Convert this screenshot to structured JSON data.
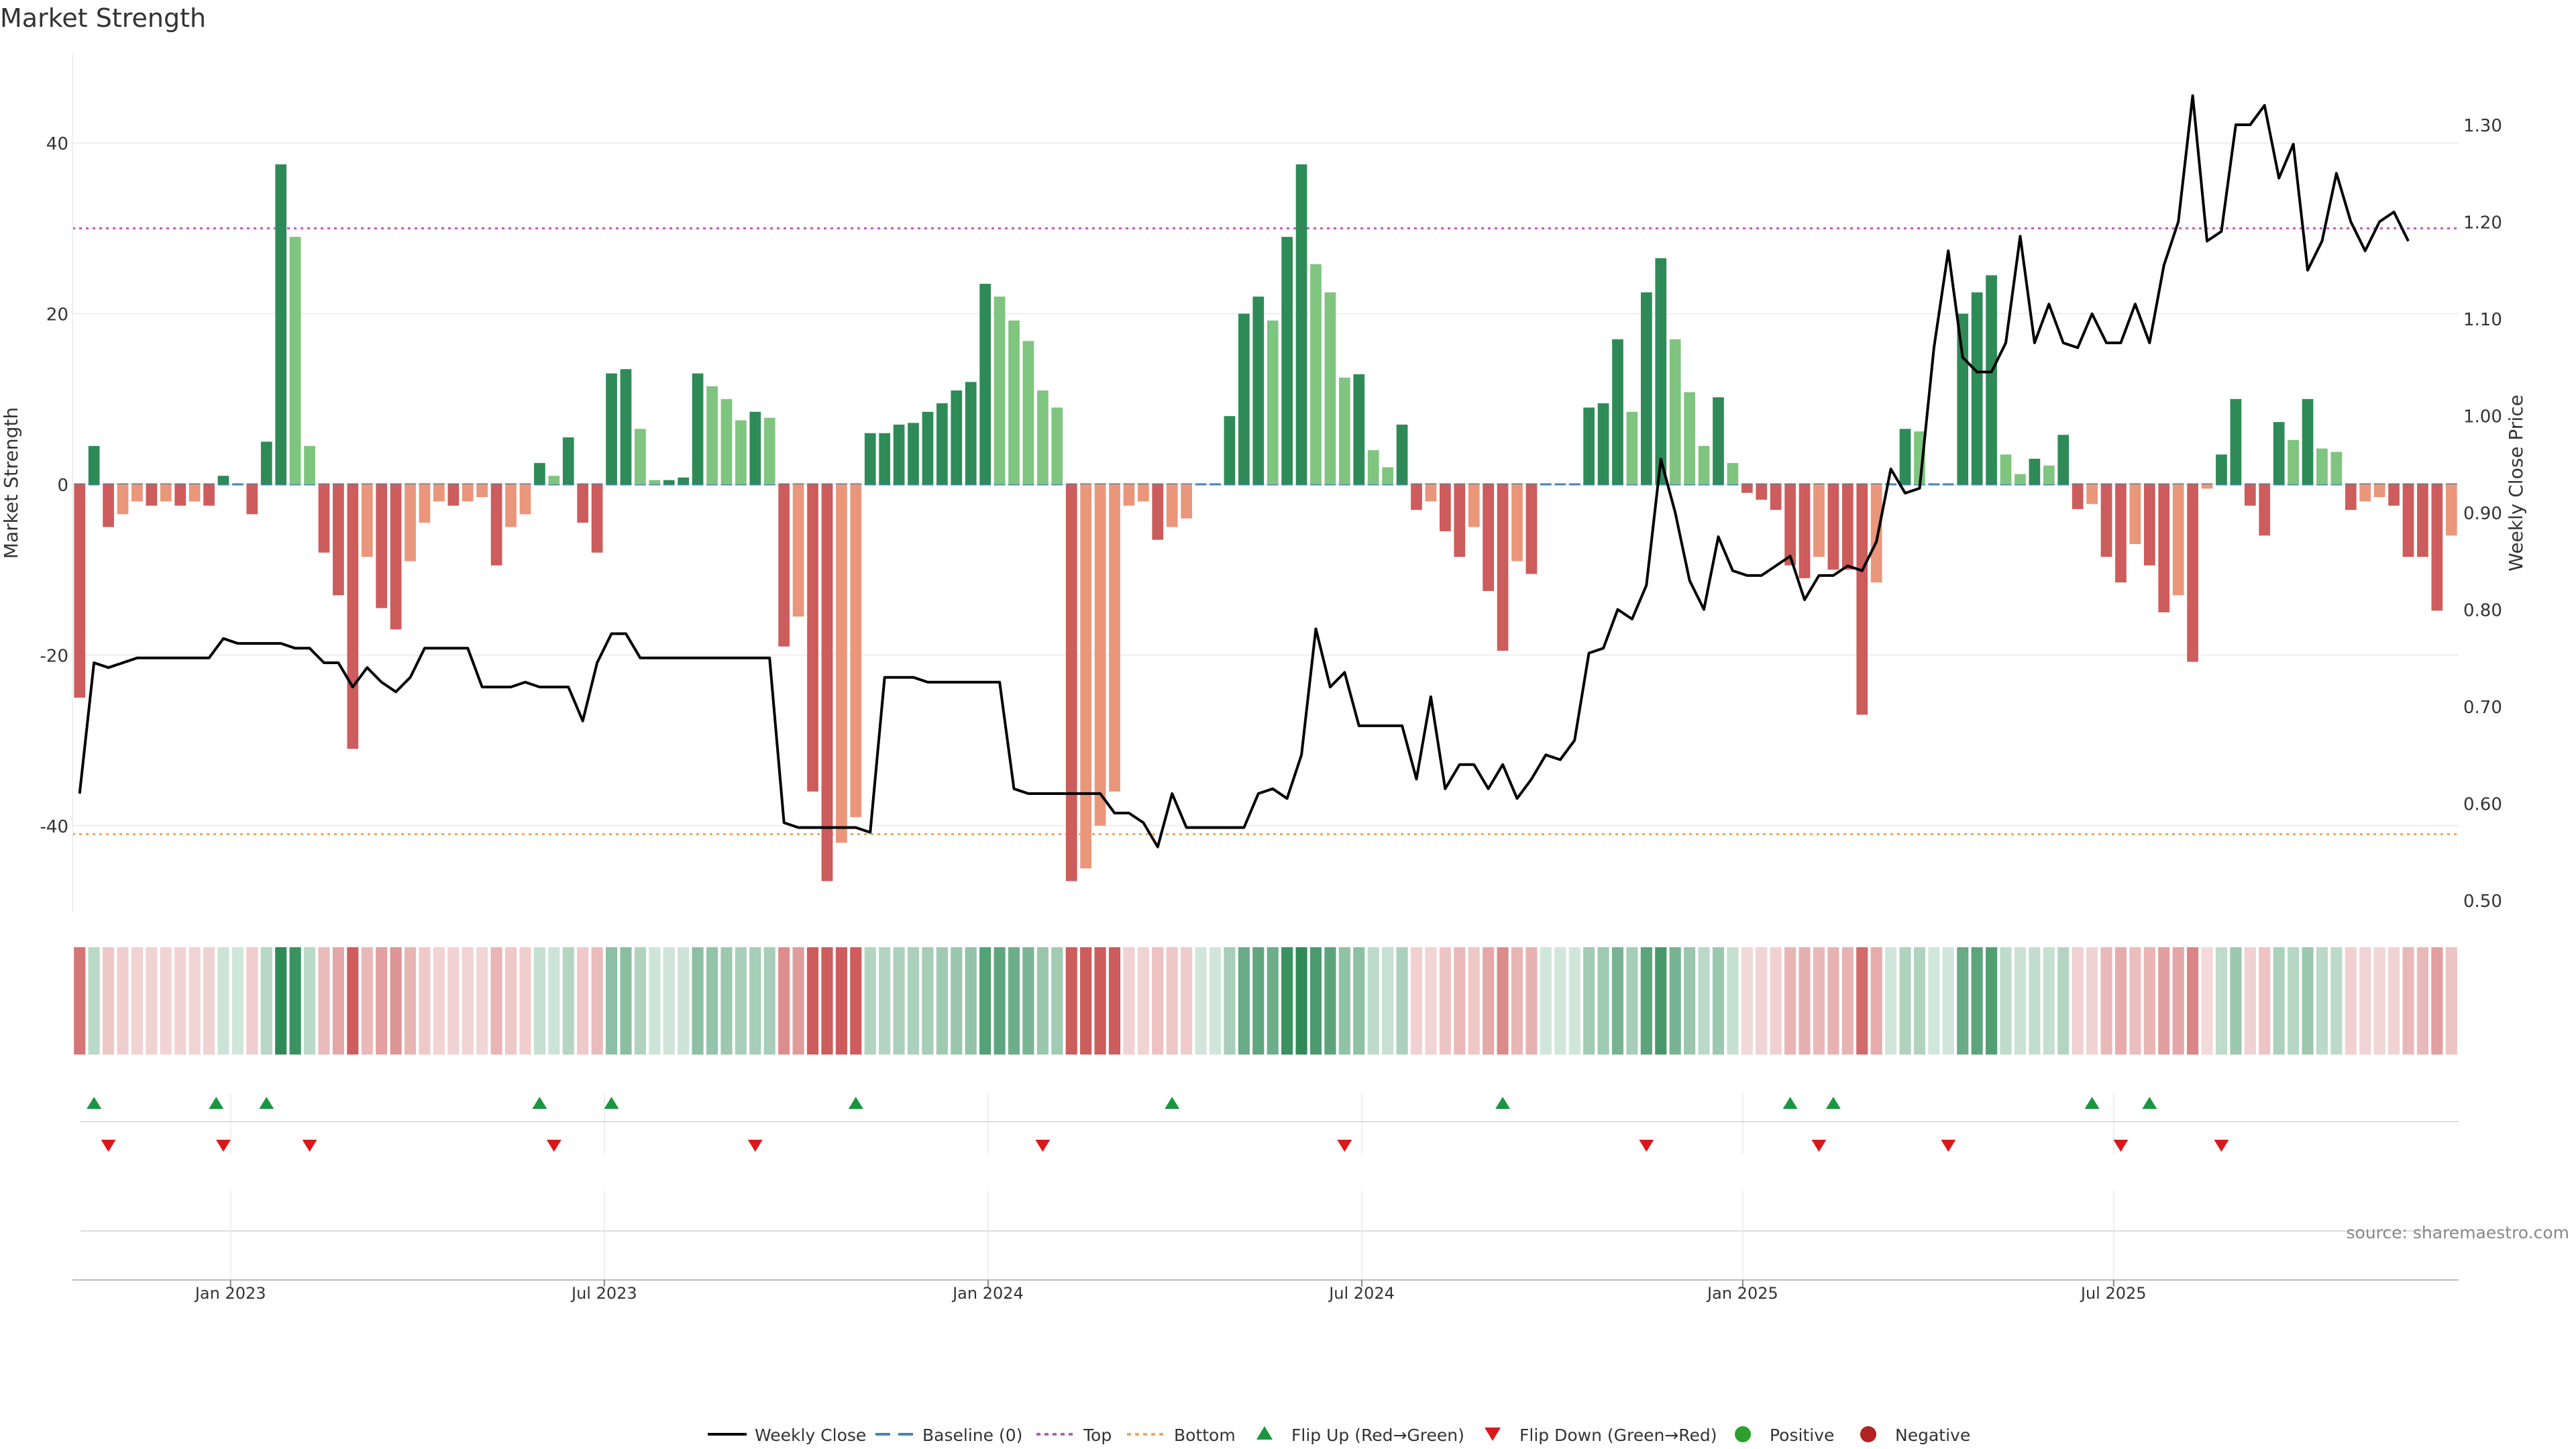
{
  "chart_data": {
    "type": "bar+line",
    "title": "Market Strength",
    "ylabel_left": "Market Strength",
    "ylabel_right": "Weekly Close Price",
    "ylim_left": [
      -50,
      50
    ],
    "ylim_right": [
      0.48,
      1.37
    ],
    "yticks_left": [
      "40",
      "20",
      "0",
      "-20",
      "-40"
    ],
    "yticks_left_values": [
      40,
      20,
      0,
      -20,
      -40
    ],
    "yticks_right": [
      "1.30",
      "1.20",
      "1.10",
      "1.00",
      "0.90",
      "0.80",
      "0.70",
      "0.60",
      "0.50"
    ],
    "yticks_right_values": [
      1.3,
      1.2,
      1.1,
      1.0,
      0.9,
      0.8,
      0.7,
      0.6,
      0.5
    ],
    "x_start": "2022-10-17",
    "week_step": 1,
    "x_ticks": [
      {
        "label": "Jan 2023",
        "week": 11
      },
      {
        "label": "Jul 2023",
        "week": 37
      },
      {
        "label": "Jan 2024",
        "week": 63.7
      },
      {
        "label": "Jul 2024",
        "week": 89.7
      },
      {
        "label": "Jan 2025",
        "week": 116.2
      },
      {
        "label": "Jul 2025",
        "week": 142
      }
    ],
    "strength": [
      -25,
      4.5,
      -5,
      -3.5,
      -2,
      -2.5,
      -2,
      -2.5,
      -2,
      -2.5,
      1,
      0,
      -3.5,
      5,
      37.5,
      29,
      4.5,
      -8,
      -13,
      -31,
      -8.5,
      -14.5,
      -17,
      -9,
      -4.5,
      -2,
      -2.5,
      -2,
      -1.5,
      -9.5,
      -5,
      -3.5,
      2.5,
      1,
      5.5,
      -4.5,
      -8,
      13,
      13.5,
      6.5,
      0.5,
      0.5,
      0.8,
      13,
      11.5,
      10,
      7.5,
      8.5,
      7.8,
      -19,
      -15.5,
      -36,
      -46.5,
      -42,
      -39,
      6,
      6,
      7,
      7.2,
      8.5,
      9.5,
      11,
      12,
      23.5,
      22,
      19.2,
      16.8,
      11,
      9,
      -46.5,
      -45,
      -40,
      -36,
      -2.5,
      -2,
      -6.5,
      -5,
      -4,
      0,
      0,
      8,
      20,
      22,
      19.2,
      29,
      37.5,
      25.8,
      22.5,
      12.5,
      12.9,
      4,
      2,
      7,
      -3,
      -2,
      -5.5,
      -8.5,
      -5,
      -12.5,
      -19.5,
      -9,
      -10.5,
      0,
      0,
      0,
      9,
      9.5,
      17,
      8.5,
      22.5,
      26.5,
      17,
      10.8,
      4.5,
      10.2,
      2.5,
      -1,
      -1.8,
      -3,
      -9.5,
      -11,
      -8.5,
      -10,
      -10,
      -27,
      -11.5,
      0,
      6.5,
      6.2,
      0,
      0,
      20,
      22.5,
      24.5,
      3.5,
      1.2,
      3,
      2.2,
      5.8,
      -2.9,
      -2.3,
      -8.5,
      -11.5,
      -7,
      -9.5,
      -15,
      -13,
      -20.8,
      -0.5,
      3.5,
      10,
      -2.5,
      -6,
      7.3,
      5.2,
      10,
      4.2,
      3.8,
      -3,
      -2,
      -1.5,
      -2.5,
      -8.5,
      -8.5,
      -14.8,
      -6
    ],
    "close": [
      0.61,
      0.745,
      0.74,
      0.745,
      0.75,
      0.75,
      0.75,
      0.75,
      0.75,
      0.75,
      0.77,
      0.765,
      0.765,
      0.765,
      0.765,
      0.76,
      0.76,
      0.745,
      0.745,
      0.72,
      0.74,
      0.725,
      0.715,
      0.73,
      0.76,
      0.76,
      0.76,
      0.76,
      0.72,
      0.72,
      0.72,
      0.725,
      0.72,
      0.72,
      0.72,
      0.685,
      0.745,
      0.775,
      0.775,
      0.75,
      0.75,
      0.75,
      0.75,
      0.75,
      0.75,
      0.75,
      0.75,
      0.75,
      0.75,
      0.58,
      0.575,
      0.575,
      0.575,
      0.575,
      0.575,
      0.57,
      0.73,
      0.73,
      0.73,
      0.725,
      0.725,
      0.725,
      0.725,
      0.725,
      0.725,
      0.615,
      0.61,
      0.61,
      0.61,
      0.61,
      0.61,
      0.61,
      0.59,
      0.59,
      0.58,
      0.555,
      0.61,
      0.575,
      0.575,
      0.575,
      0.575,
      0.575,
      0.61,
      0.615,
      0.605,
      0.65,
      0.78,
      0.72,
      0.735,
      0.68,
      0.68,
      0.68,
      0.68,
      0.625,
      0.71,
      0.615,
      0.64,
      0.64,
      0.615,
      0.64,
      0.605,
      0.625,
      0.65,
      0.645,
      0.665,
      0.755,
      0.76,
      0.8,
      0.79,
      0.825,
      0.955,
      0.9,
      0.83,
      0.8,
      0.875,
      0.84,
      0.835,
      0.835,
      0.845,
      0.855,
      0.81,
      0.835,
      0.835,
      0.845,
      0.84,
      0.87,
      0.945,
      0.92,
      0.925,
      1.07,
      1.17,
      1.06,
      1.045,
      1.045,
      1.075,
      1.185,
      1.075,
      1.115,
      1.075,
      1.07,
      1.105,
      1.075,
      1.075,
      1.115,
      1.075,
      1.155,
      1.2,
      1.33,
      1.18,
      1.19,
      1.3,
      1.3,
      1.32,
      1.245,
      1.28,
      1.15,
      1.18,
      1.25,
      1.2,
      1.17,
      1.2,
      1.21,
      1.18
    ],
    "reference_lines": {
      "baseline": 0,
      "top": 30,
      "bottom": -41
    },
    "flip_up_weeks": [
      1,
      9.5,
      13,
      32,
      37,
      54,
      76,
      99,
      119,
      122,
      140,
      144
    ],
    "flip_down_weeks": [
      2,
      10,
      16,
      33,
      47,
      67,
      88,
      109,
      121,
      130,
      142,
      149
    ],
    "legend": [
      "Weekly Close",
      "Baseline (0)",
      "Top",
      "Bottom",
      "Flip Up (Red→Green)",
      "Flip Down (Green→Red)",
      "Positive",
      "Negative"
    ],
    "legend_position": "bottom-center",
    "annotation": "source: sharemaestro.com"
  },
  "colors": {
    "pos_strong": "#2e8b57",
    "pos_light": "#7fc47f",
    "neg_strong": "#cd5c5c",
    "neg_light": "#e9967a",
    "close_line": "#000000",
    "baseline": "#4682b4",
    "top": "#c154c1",
    "bottom": "#f4a460",
    "flip_up": "#1a9641",
    "flip_down": "#d7191c",
    "positive_dot": "#2ca02c",
    "negative_dot": "#b22222"
  }
}
